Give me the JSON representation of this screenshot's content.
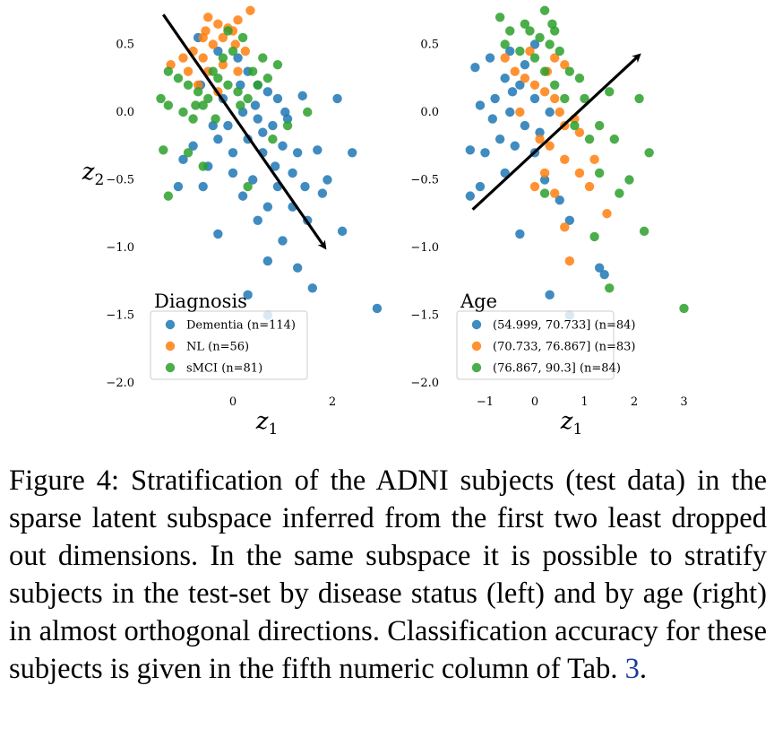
{
  "chart_data": [
    {
      "type": "scatter",
      "xlabel": "z1",
      "ylabel": "z2",
      "xticks": [
        0,
        2
      ],
      "yticks": [
        0.5,
        0.0,
        -0.5,
        -1.0,
        -1.5,
        -2.0
      ],
      "ytick_labels": [
        "0.5",
        "0.0",
        "−0.5",
        "−1.0",
        "−1.5",
        "−2.0"
      ],
      "xtick_labels": [
        "0",
        "2"
      ],
      "xlim": [
        -1.6,
        3.1
      ],
      "ylim": [
        -2.1,
        0.78
      ],
      "grid": false,
      "legend": {
        "title": "Diagnosis",
        "placement": "lower-center"
      },
      "arrow": {
        "from": [
          -1.4,
          0.72
        ],
        "to": [
          1.85,
          -1.0
        ]
      },
      "series": [
        {
          "name": "Dementia (n=114)",
          "color": "#1f77b4",
          "points": [
            [
              -0.7,
              0.55
            ],
            [
              -0.3,
              0.45
            ],
            [
              0.1,
              0.4
            ],
            [
              0.3,
              0.3
            ],
            [
              0.5,
              0.2
            ],
            [
              0.7,
              0.15
            ],
            [
              0.9,
              0.1
            ],
            [
              1.4,
              0.12
            ],
            [
              2.1,
              0.1
            ],
            [
              1.1,
              -0.05
            ],
            [
              0.8,
              -0.1
            ],
            [
              0.5,
              -0.05
            ],
            [
              0.2,
              0.0
            ],
            [
              -0.1,
              -0.1
            ],
            [
              -0.3,
              -0.2
            ],
            [
              0.3,
              -0.2
            ],
            [
              0.6,
              -0.3
            ],
            [
              1.0,
              -0.25
            ],
            [
              1.3,
              -0.3
            ],
            [
              1.7,
              -0.28
            ],
            [
              2.4,
              -0.3
            ],
            [
              -0.8,
              -0.25
            ],
            [
              -1.0,
              -0.35
            ],
            [
              -0.5,
              -0.4
            ],
            [
              0.0,
              -0.45
            ],
            [
              0.4,
              -0.5
            ],
            [
              0.9,
              -0.55
            ],
            [
              1.2,
              -0.45
            ],
            [
              1.9,
              -0.5
            ],
            [
              -1.1,
              -0.55
            ],
            [
              -0.6,
              -0.55
            ],
            [
              0.2,
              -0.62
            ],
            [
              0.7,
              -0.7
            ],
            [
              1.2,
              -0.7
            ],
            [
              1.8,
              -0.6
            ],
            [
              -0.3,
              -0.9
            ],
            [
              0.5,
              -0.8
            ],
            [
              1.0,
              -0.95
            ],
            [
              1.5,
              -0.8
            ],
            [
              2.2,
              -0.88
            ],
            [
              0.7,
              -1.1
            ],
            [
              1.3,
              -1.15
            ],
            [
              1.6,
              -1.3
            ],
            [
              0.3,
              -1.35
            ],
            [
              0.7,
              -1.5
            ],
            [
              2.9,
              -1.45
            ],
            [
              -0.2,
              0.1
            ],
            [
              0.0,
              -0.3
            ],
            [
              -0.4,
              -0.1
            ],
            [
              0.45,
              0.05
            ],
            [
              0.6,
              -0.15
            ],
            [
              1.05,
              0.0
            ],
            [
              -0.65,
              0.2
            ],
            [
              0.15,
              0.2
            ],
            [
              0.85,
              -0.4
            ],
            [
              1.45,
              -0.55
            ]
          ]
        },
        {
          "name": "NL (n=56)",
          "color": "#ff7f0e",
          "points": [
            [
              -0.5,
              0.7
            ],
            [
              -0.3,
              0.65
            ],
            [
              0.0,
              0.6
            ],
            [
              0.1,
              0.68
            ],
            [
              0.35,
              0.75
            ],
            [
              -0.6,
              0.55
            ],
            [
              -0.4,
              0.5
            ],
            [
              -0.2,
              0.55
            ],
            [
              0.05,
              0.5
            ],
            [
              0.25,
              0.45
            ],
            [
              -0.8,
              0.45
            ],
            [
              -0.6,
              0.4
            ],
            [
              -1.0,
              0.4
            ],
            [
              -1.25,
              0.35
            ],
            [
              -0.9,
              0.3
            ],
            [
              -0.5,
              0.3
            ],
            [
              -0.2,
              0.35
            ],
            [
              0.1,
              0.3
            ],
            [
              -0.7,
              0.2
            ],
            [
              -0.3,
              0.15
            ],
            [
              -0.55,
              0.6
            ],
            [
              -0.1,
              0.62
            ]
          ]
        },
        {
          "name": "sMCI (n=81)",
          "color": "#2ca02c",
          "points": [
            [
              -1.3,
              0.3
            ],
            [
              -1.1,
              0.25
            ],
            [
              -0.9,
              0.2
            ],
            [
              -0.7,
              0.15
            ],
            [
              -0.5,
              0.1
            ],
            [
              -0.3,
              0.25
            ],
            [
              -0.1,
              0.2
            ],
            [
              0.1,
              0.15
            ],
            [
              0.3,
              0.1
            ],
            [
              0.5,
              0.2
            ],
            [
              0.7,
              0.25
            ],
            [
              0.9,
              0.35
            ],
            [
              -1.3,
              0.05
            ],
            [
              -1.0,
              0.0
            ],
            [
              -0.8,
              -0.05
            ],
            [
              -0.6,
              0.05
            ],
            [
              -0.4,
              0.3
            ],
            [
              -0.2,
              0.4
            ],
            [
              0.0,
              0.45
            ],
            [
              0.2,
              0.55
            ],
            [
              -0.1,
              0.6
            ],
            [
              0.6,
              0.4
            ],
            [
              1.1,
              -0.1
            ],
            [
              0.8,
              -0.2
            ],
            [
              1.5,
              0.0
            ],
            [
              -1.4,
              -0.28
            ],
            [
              -1.3,
              -0.62
            ],
            [
              -0.6,
              -0.4
            ],
            [
              -0.9,
              -0.3
            ],
            [
              0.3,
              -0.55
            ],
            [
              -1.45,
              0.1
            ],
            [
              -0.75,
              0.05
            ],
            [
              0.4,
              0.3
            ],
            [
              -0.35,
              -0.05
            ],
            [
              0.15,
              0.05
            ]
          ]
        }
      ]
    },
    {
      "type": "scatter",
      "xlabel": "z1",
      "ylabel": "",
      "xticks": [
        -1,
        0,
        1,
        2,
        3
      ],
      "xtick_labels": [
        "−1",
        "0",
        "1",
        "2",
        "3"
      ],
      "yticks": [
        0.5,
        0.0,
        -0.5,
        -1.0,
        -1.5,
        -2.0
      ],
      "ytick_labels": [
        "0.5",
        "0.0",
        "−0.5",
        "−1.0",
        "−1.5",
        "−2.0"
      ],
      "xlim": [
        -1.6,
        3.1
      ],
      "ylim": [
        -2.1,
        0.78
      ],
      "grid": false,
      "legend": {
        "title": "Age",
        "placement": "lower-center"
      },
      "arrow": {
        "from": [
          -1.25,
          -0.72
        ],
        "to": [
          2.1,
          0.42
        ]
      },
      "series": [
        {
          "name": "(54.999, 70.733] (n=84)",
          "color": "#1f77b4",
          "points": [
            [
              -1.2,
              0.33
            ],
            [
              -0.9,
              0.4
            ],
            [
              -0.6,
              0.25
            ],
            [
              -0.3,
              0.2
            ],
            [
              0.0,
              0.1
            ],
            [
              0.3,
              0.0
            ],
            [
              -1.1,
              0.05
            ],
            [
              -0.8,
              0.1
            ],
            [
              -0.5,
              0.0
            ],
            [
              -0.2,
              -0.1
            ],
            [
              0.1,
              -0.15
            ],
            [
              -0.7,
              -0.2
            ],
            [
              -0.4,
              -0.25
            ],
            [
              0.0,
              -0.3
            ],
            [
              -1.0,
              -0.3
            ],
            [
              -1.3,
              -0.28
            ],
            [
              -1.1,
              -0.55
            ],
            [
              -0.6,
              -0.45
            ],
            [
              0.2,
              -0.5
            ],
            [
              -1.3,
              -0.62
            ],
            [
              0.5,
              -0.65
            ],
            [
              0.7,
              -0.8
            ],
            [
              -0.3,
              -0.9
            ],
            [
              1.3,
              -1.15
            ],
            [
              1.4,
              -1.2
            ],
            [
              0.3,
              -1.35
            ],
            [
              0.7,
              -1.5
            ],
            [
              -0.5,
              0.45
            ],
            [
              -0.2,
              0.35
            ],
            [
              0.0,
              0.5
            ],
            [
              -0.85,
              -0.05
            ],
            [
              -0.45,
              0.15
            ]
          ]
        },
        {
          "name": "(70.733, 76.867] (n=83)",
          "color": "#ff7f0e",
          "points": [
            [
              -0.6,
              0.4
            ],
            [
              -0.4,
              0.3
            ],
            [
              -0.2,
              0.25
            ],
            [
              0.0,
              0.2
            ],
            [
              0.2,
              0.15
            ],
            [
              0.4,
              0.1
            ],
            [
              0.5,
              0.0
            ],
            [
              0.6,
              -0.1
            ],
            [
              0.8,
              -0.05
            ],
            [
              0.9,
              -0.15
            ],
            [
              -0.3,
              0.0
            ],
            [
              0.1,
              -0.2
            ],
            [
              0.3,
              -0.25
            ],
            [
              0.6,
              -0.35
            ],
            [
              0.9,
              -0.45
            ],
            [
              1.2,
              -0.35
            ],
            [
              0.2,
              -0.45
            ],
            [
              0.0,
              -0.55
            ],
            [
              0.4,
              -0.6
            ],
            [
              1.1,
              -0.55
            ],
            [
              0.6,
              -0.85
            ],
            [
              1.45,
              -0.75
            ],
            [
              0.7,
              -1.1
            ],
            [
              0.4,
              0.4
            ],
            [
              0.6,
              0.35
            ],
            [
              0.25,
              0.3
            ],
            [
              -0.1,
              0.45
            ]
          ]
        },
        {
          "name": "(76.867, 90.3] (n=84)",
          "color": "#2ca02c",
          "points": [
            [
              -0.7,
              0.7
            ],
            [
              -0.5,
              0.6
            ],
            [
              -0.2,
              0.65
            ],
            [
              0.1,
              0.55
            ],
            [
              0.3,
              0.5
            ],
            [
              0.2,
              0.75
            ],
            [
              0.5,
              0.45
            ],
            [
              0.7,
              0.3
            ],
            [
              0.9,
              0.25
            ],
            [
              -0.6,
              0.5
            ],
            [
              -0.3,
              0.45
            ],
            [
              0.0,
              0.4
            ],
            [
              0.2,
              0.3
            ],
            [
              0.4,
              0.2
            ],
            [
              0.6,
              0.1
            ],
            [
              1.0,
              0.1
            ],
            [
              1.3,
              -0.1
            ],
            [
              1.5,
              0.15
            ],
            [
              2.1,
              0.1
            ],
            [
              0.8,
              -0.1
            ],
            [
              1.1,
              -0.2
            ],
            [
              1.6,
              -0.2
            ],
            [
              2.3,
              -0.3
            ],
            [
              1.3,
              -0.45
            ],
            [
              1.9,
              -0.5
            ],
            [
              1.7,
              -0.6
            ],
            [
              2.2,
              -0.88
            ],
            [
              1.2,
              -0.92
            ],
            [
              1.5,
              -1.3
            ],
            [
              3.0,
              -1.45
            ],
            [
              0.2,
              -0.6
            ],
            [
              0.4,
              0.6
            ],
            [
              -0.1,
              0.6
            ],
            [
              0.35,
              0.65
            ]
          ]
        }
      ]
    }
  ],
  "caption": {
    "label": "Figure 4:",
    "body": " Stratification of the ADNI subjects (test data) in the sparse latent subspace inferred from the first two least dropped out dimensions. In the same subspace it is possible to stratify subjects in the test-set by disease status (left) and by age (right) in almost orthogonal directions. Classification accuracy for these subjects is given in the fifth numeric column of Tab. ",
    "ref": "3",
    "end": "."
  }
}
